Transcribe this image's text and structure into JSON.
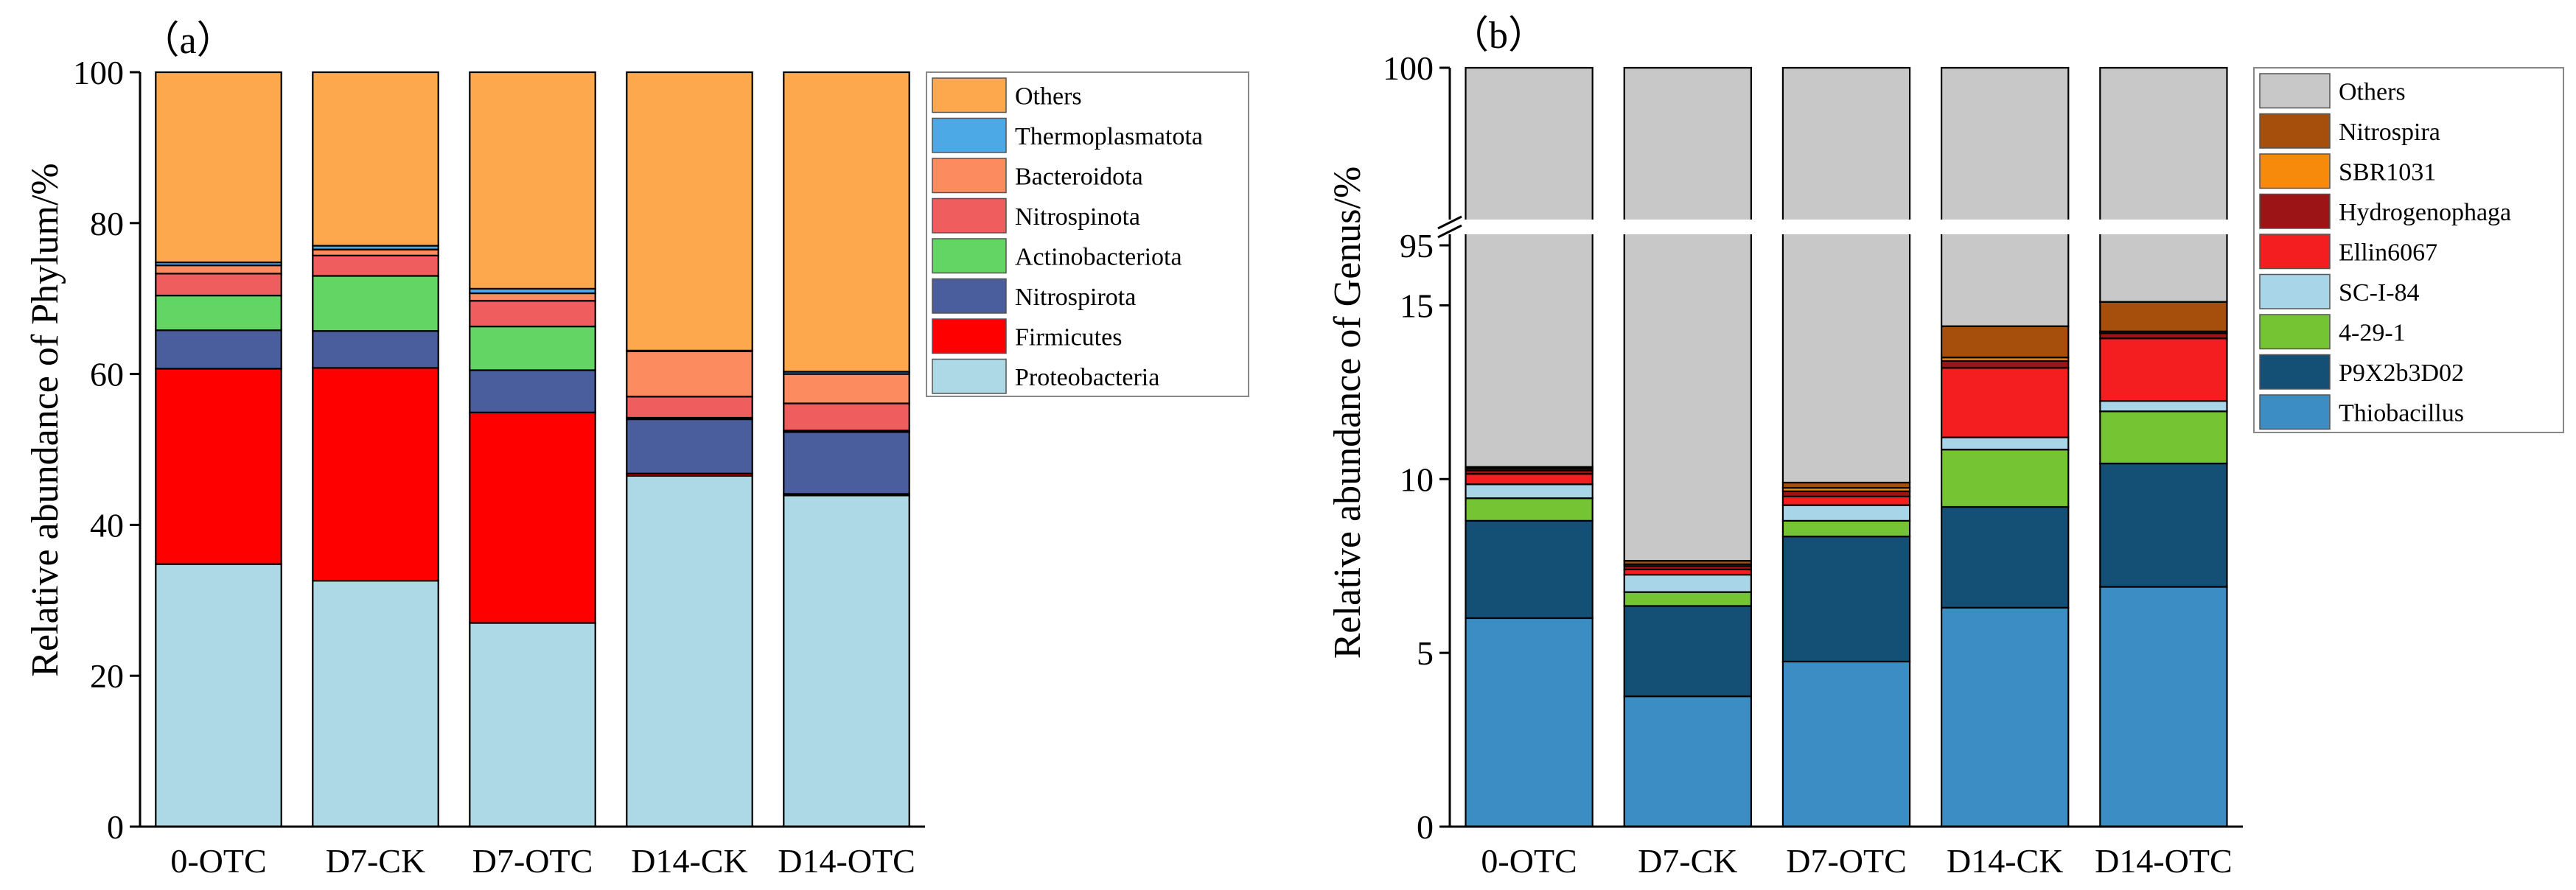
{
  "chart_data": [
    {
      "type": "bar",
      "stacked": true,
      "panel_label": "（a）",
      "title": "",
      "xlabel": "",
      "ylabel": "Relative abundance of Phylum/%",
      "ylim": [
        0,
        100
      ],
      "yticks": [
        "0",
        "20",
        "40",
        "60",
        "80",
        "100"
      ],
      "categories": [
        "0-OTC",
        "D7-CK",
        "D7-OTC",
        "D14-CK",
        "D14-OTC"
      ],
      "series": [
        {
          "name": "Proteobacteria",
          "color": "#add8e6",
          "values": [
            34.8,
            32.6,
            27.0,
            46.5,
            43.9
          ]
        },
        {
          "name": "Firmicutes",
          "color": "#ff0000",
          "values": [
            25.9,
            28.2,
            27.9,
            0.3,
            0.2
          ]
        },
        {
          "name": "Nitrospirota",
          "color": "#4a5e9e",
          "values": [
            5.1,
            4.9,
            5.6,
            7.2,
            8.2
          ]
        },
        {
          "name": "Actinobacteriota",
          "color": "#62d565",
          "values": [
            4.6,
            7.3,
            5.8,
            0.2,
            0.2
          ]
        },
        {
          "name": "Nitrospinota",
          "color": "#f05d5e",
          "values": [
            2.9,
            2.7,
            3.4,
            2.8,
            3.6
          ]
        },
        {
          "name": "Bacteroidota",
          "color": "#fd8b60",
          "values": [
            1.1,
            0.8,
            1.0,
            6.0,
            3.9
          ]
        },
        {
          "name": "Thermoplasmatota",
          "color": "#4ca9e5",
          "values": [
            0.4,
            0.5,
            0.6,
            0.1,
            0.3
          ]
        },
        {
          "name": "Others",
          "color": "#fda84d",
          "values": [
            25.2,
            23.0,
            28.7,
            36.9,
            39.7
          ]
        }
      ],
      "legend_order": [
        "Others",
        "Thermoplasmatota",
        "Bacteroidota",
        "Nitrospinota",
        "Actinobacteriota",
        "Nitrospirota",
        "Firmicutes",
        "Proteobacteria"
      ],
      "legend_position": "right"
    },
    {
      "type": "bar",
      "stacked": true,
      "broken_axis": true,
      "axis_break": [
        17.5,
        95
      ],
      "panel_label": "（b）",
      "title": "",
      "xlabel": "",
      "ylabel": "Relative abundance of Genus/%",
      "ylim": [
        0,
        100
      ],
      "yticks": [
        "0",
        "5",
        "10",
        "15",
        "95",
        "100"
      ],
      "categories": [
        "0-OTC",
        "D7-CK",
        "D7-OTC",
        "D14-CK",
        "D14-OTC"
      ],
      "series": [
        {
          "name": "Thiobacillus",
          "color": "#3d8dc5",
          "values": [
            6.0,
            3.75,
            4.75,
            6.3,
            6.9
          ]
        },
        {
          "name": "P9X2b3D02",
          "color": "#144f75",
          "values": [
            2.8,
            2.6,
            3.6,
            2.9,
            3.55
          ]
        },
        {
          "name": "4-29-1",
          "color": "#74c434",
          "values": [
            0.65,
            0.4,
            0.45,
            1.65,
            1.5
          ]
        },
        {
          "name": "SC-I-84",
          "color": "#a8d5e8",
          "values": [
            0.4,
            0.5,
            0.45,
            0.35,
            0.3
          ]
        },
        {
          "name": "Ellin6067",
          "color": "#f41e20",
          "values": [
            0.3,
            0.15,
            0.25,
            2.0,
            1.8
          ]
        },
        {
          "name": "Hydrogenophaga",
          "color": "#9c1415",
          "values": [
            0.1,
            0.1,
            0.15,
            0.2,
            0.15
          ]
        },
        {
          "name": "SBR1031",
          "color": "#f7890b",
          "values": [
            0.05,
            0.05,
            0.1,
            0.1,
            0.05
          ]
        },
        {
          "name": "Nitrospira",
          "color": "#a64f0c",
          "values": [
            0.05,
            0.1,
            0.15,
            0.9,
            0.85
          ]
        },
        {
          "name": "Others",
          "color": "#c8c8c8",
          "values": [
            89.65,
            92.35,
            90.1,
            85.6,
            84.9
          ]
        }
      ],
      "legend_order": [
        "Others",
        "Nitrospira",
        "SBR1031",
        "Hydrogenophaga",
        "Ellin6067",
        "SC-I-84",
        "4-29-1",
        "P9X2b3D02",
        "Thiobacillus"
      ],
      "legend_position": "right"
    }
  ]
}
